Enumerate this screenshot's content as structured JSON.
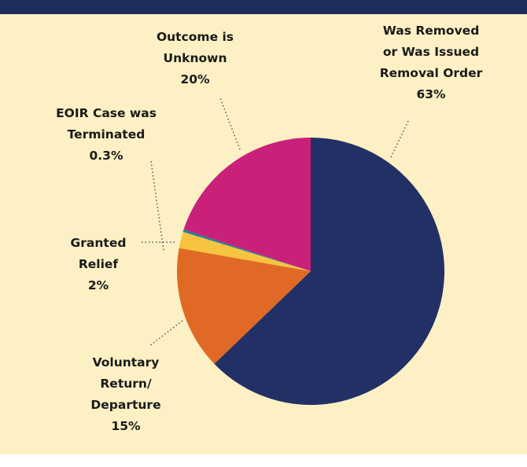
{
  "chart_data": {
    "type": "pie",
    "categories": [
      "Was Removed\nor Was Issued\nRemoval Order",
      "Voluntary\nReturn/\nDeparture",
      "Granted\nRelief",
      "EOIR Case was\nTerminated",
      "Outcome is\nUnknown"
    ],
    "values": [
      63,
      15,
      2,
      0.3,
      20
    ],
    "value_labels": [
      "63%",
      "15%",
      "2%",
      "0.3%",
      "20%"
    ],
    "colors": [
      "#223065",
      "#e06a25",
      "#f7c440",
      "#1f7f9a",
      "#c9217a"
    ]
  }
}
